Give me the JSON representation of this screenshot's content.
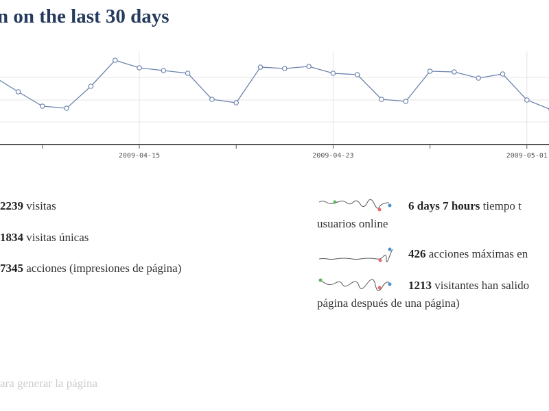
{
  "header": {
    "title": "n on the last 30 days"
  },
  "chart_data": {
    "type": "line",
    "categories": [
      null,
      null,
      null,
      null,
      null,
      null,
      "2009-04-15",
      null,
      null,
      null,
      null,
      null,
      null,
      null,
      "2009-04-23",
      null,
      null,
      null,
      null,
      null,
      null,
      null,
      "2009-05-01",
      null
    ],
    "values": [
      99,
      77,
      56,
      53,
      85,
      123,
      112,
      108,
      104,
      66,
      61,
      113,
      111,
      114,
      104,
      102,
      66,
      63,
      107,
      106,
      97,
      103,
      65,
      51
    ],
    "color": "#6b82ad",
    "ylim": [
      0,
      131
    ],
    "yticks": [
      33,
      65,
      98
    ],
    "grid": true
  },
  "stats": {
    "left": [
      {
        "value": 2239,
        "label": "visitas"
      },
      {
        "value": 1834,
        "label": "visitas únicas"
      },
      {
        "value": 7345,
        "label": "acciones (impresiones de página)"
      }
    ],
    "right": [
      {
        "value": "6 days 7 hours",
        "label": "tiempo t",
        "line2": "usuarios online"
      },
      {
        "value": 426,
        "label": "acciones máximas en"
      },
      {
        "value": 1213,
        "label": "visitantes han salido",
        "line2": "página después de una página)"
      }
    ]
  },
  "footer": {
    "text": "ara generar la página"
  }
}
